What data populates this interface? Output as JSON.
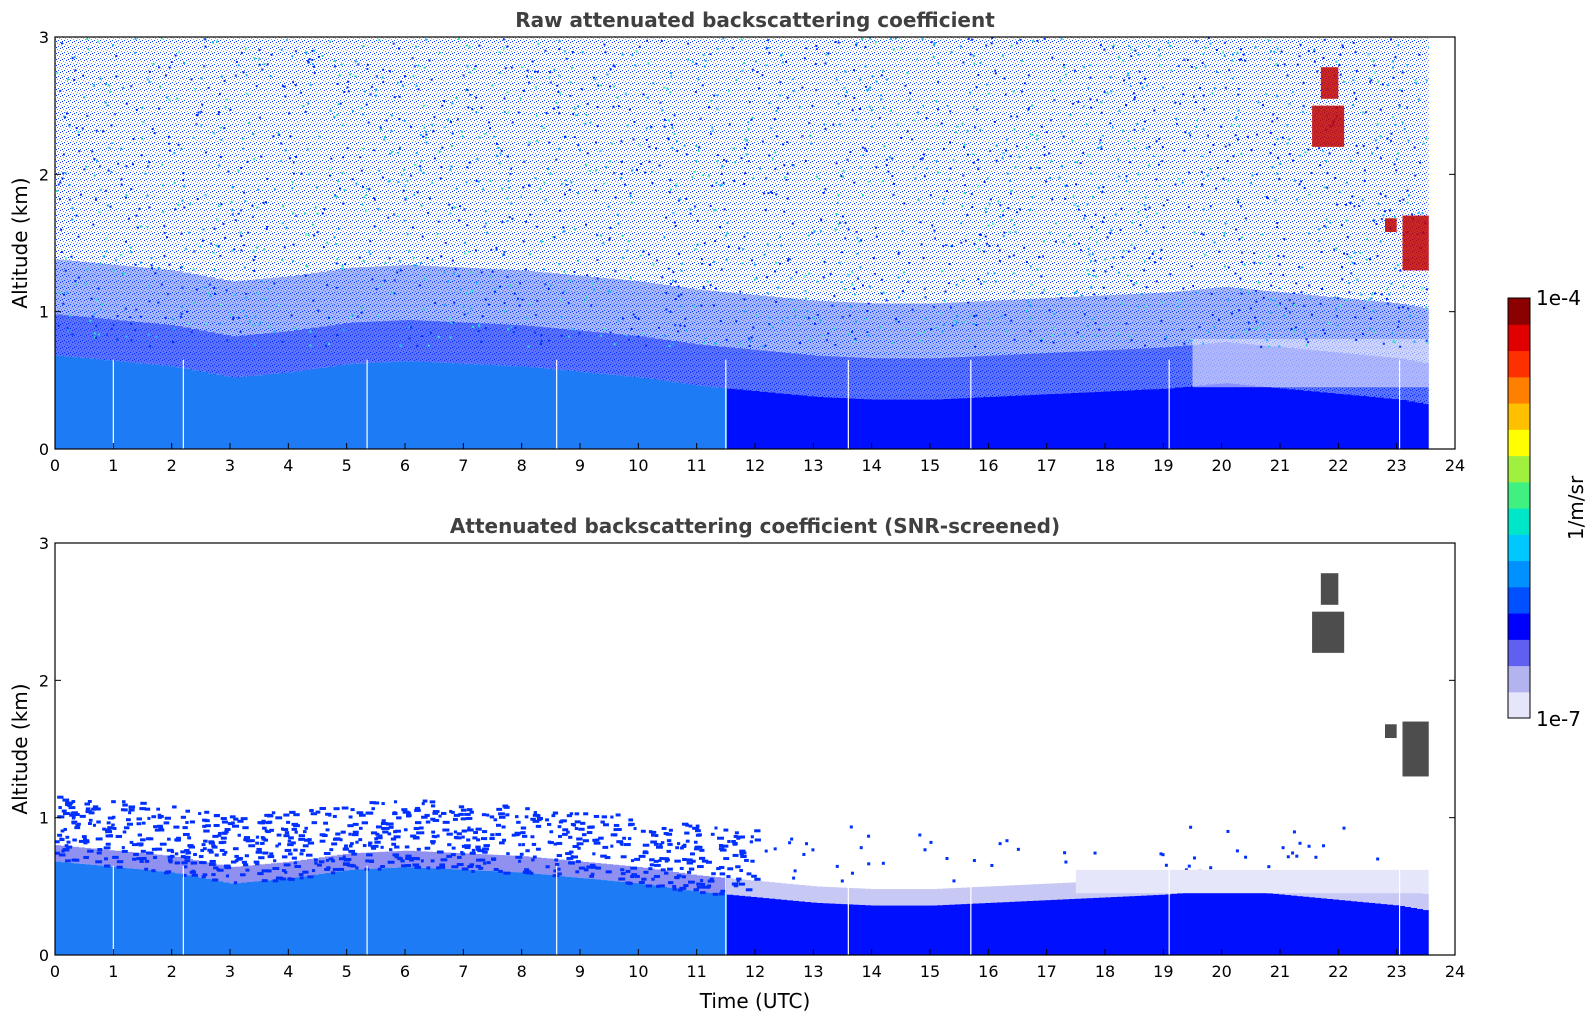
{
  "chart_data": [
    {
      "type": "heatmap",
      "title": "Raw attenuated backscattering coefficient",
      "xlabel": "",
      "ylabel": "Altitude (km)",
      "xlim": [
        0,
        24
      ],
      "ylim": [
        0,
        3
      ],
      "xticks": [
        0,
        1,
        2,
        3,
        4,
        5,
        6,
        7,
        8,
        9,
        10,
        11,
        12,
        13,
        14,
        15,
        16,
        17,
        18,
        19,
        20,
        21,
        22,
        23,
        24
      ],
      "yticks": [
        0,
        1,
        2,
        3
      ],
      "data_end_time": 23.55,
      "gap_times": [
        1.0,
        2.2,
        5.35,
        8.6,
        11.5,
        13.6,
        15.7,
        19.1,
        23.05
      ],
      "boundary_layer_top_km": [
        {
          "t": 0,
          "h": 0.68
        },
        {
          "t": 1,
          "h": 0.64
        },
        {
          "t": 2,
          "h": 0.6
        },
        {
          "t": 3,
          "h": 0.52
        },
        {
          "t": 4,
          "h": 0.56
        },
        {
          "t": 5,
          "h": 0.62
        },
        {
          "t": 6,
          "h": 0.64
        },
        {
          "t": 7,
          "h": 0.62
        },
        {
          "t": 8,
          "h": 0.6
        },
        {
          "t": 9,
          "h": 0.56
        },
        {
          "t": 10,
          "h": 0.52
        },
        {
          "t": 11,
          "h": 0.46
        },
        {
          "t": 12,
          "h": 0.42
        },
        {
          "t": 13,
          "h": 0.38
        },
        {
          "t": 14,
          "h": 0.36
        },
        {
          "t": 15,
          "h": 0.36
        },
        {
          "t": 16,
          "h": 0.38
        },
        {
          "t": 17,
          "h": 0.4
        },
        {
          "t": 18,
          "h": 0.42
        },
        {
          "t": 19,
          "h": 0.44
        },
        {
          "t": 20,
          "h": 0.48
        },
        {
          "t": 21,
          "h": 0.44
        },
        {
          "t": 22,
          "h": 0.4
        },
        {
          "t": 23,
          "h": 0.36
        },
        {
          "t": 23.55,
          "h": 0.32
        }
      ],
      "cloud_features": [
        {
          "t0": 21.7,
          "t1": 22.0,
          "h0": 2.55,
          "h1": 2.78
        },
        {
          "t0": 21.55,
          "t1": 22.1,
          "h0": 2.2,
          "h1": 2.5
        },
        {
          "t0": 22.8,
          "t1": 23.0,
          "h0": 1.58,
          "h1": 1.68
        },
        {
          "t0": 23.1,
          "t1": 23.55,
          "h0": 1.3,
          "h1": 1.7
        }
      ]
    },
    {
      "type": "heatmap",
      "title": "Attenuated backscattering coefficient (SNR-screened)",
      "xlabel": "Time (UTC)",
      "ylabel": "Altitude (km)",
      "xlim": [
        0,
        24
      ],
      "ylim": [
        0,
        3
      ],
      "xticks": [
        0,
        1,
        2,
        3,
        4,
        5,
        6,
        7,
        8,
        9,
        10,
        11,
        12,
        13,
        14,
        15,
        16,
        17,
        18,
        19,
        20,
        21,
        22,
        23,
        24
      ],
      "yticks": [
        0,
        1,
        2,
        3
      ],
      "data_end_time": 23.55,
      "gap_times": [
        1.0,
        2.2,
        5.35,
        8.6,
        11.5,
        13.6,
        15.7,
        19.1,
        23.05
      ],
      "cloud_features": [
        {
          "t0": 21.7,
          "t1": 22.0,
          "h0": 2.55,
          "h1": 2.78
        },
        {
          "t0": 21.55,
          "t1": 22.1,
          "h0": 2.2,
          "h1": 2.5
        },
        {
          "t0": 22.8,
          "t1": 23.0,
          "h0": 1.58,
          "h1": 1.68
        },
        {
          "t0": 23.1,
          "t1": 23.55,
          "h0": 1.3,
          "h1": 1.7
        }
      ]
    }
  ],
  "colorbar": {
    "label": "1/m/sr",
    "min_label": "1e-7",
    "max_label": "1e-4",
    "colormap": [
      "#e6e6fa",
      "#b3b3f0",
      "#6060f0",
      "#0000ff",
      "#0050ff",
      "#0090ff",
      "#00c8ff",
      "#00e6c8",
      "#40f080",
      "#a0f040",
      "#ffff00",
      "#ffc000",
      "#ff8000",
      "#ff3000",
      "#e00000",
      "#8b0000"
    ]
  }
}
